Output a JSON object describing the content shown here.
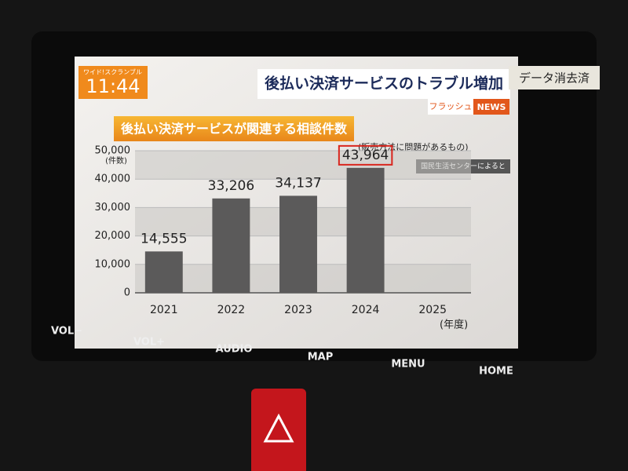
{
  "header": {
    "program": "ワイド!スクランブル",
    "time": "11:44",
    "headline": "後払い決済サービスのトラブル増加",
    "corner": "フラッシュ",
    "news": "NEWS"
  },
  "sticker": "データ消去済",
  "chart_data": {
    "type": "bar",
    "title": "後払い決済サービスが関連する相談件数",
    "subtitle": "(販売方法に問題があるもの)",
    "source": "国民生活センターによると",
    "y_label": "(件数)",
    "x_label": "(年度)",
    "categories": [
      "2021",
      "2022",
      "2023",
      "2024",
      "2025"
    ],
    "values": [
      14555,
      33206,
      34137,
      43964,
      null
    ],
    "value_labels": [
      "14,555",
      "33,206",
      "34,137",
      "43,964",
      null
    ],
    "color": "#5b5a5a",
    "ylim": [
      0,
      50000
    ],
    "yticks": [
      0,
      {
        "value": 10000,
        "label": "10,000"
      },
      {
        "value": 20000,
        "label": "20,000"
      },
      {
        "value": 30000,
        "label": "30,000"
      },
      {
        "value": 40000,
        "label": "40,000"
      },
      {
        "value": 50000,
        "label": "50,000"
      }
    ],
    "grid": true
  },
  "buttons": [
    "VOL−",
    "VOL+",
    "AUDIO",
    "MAP",
    "MENU",
    "HOME"
  ]
}
